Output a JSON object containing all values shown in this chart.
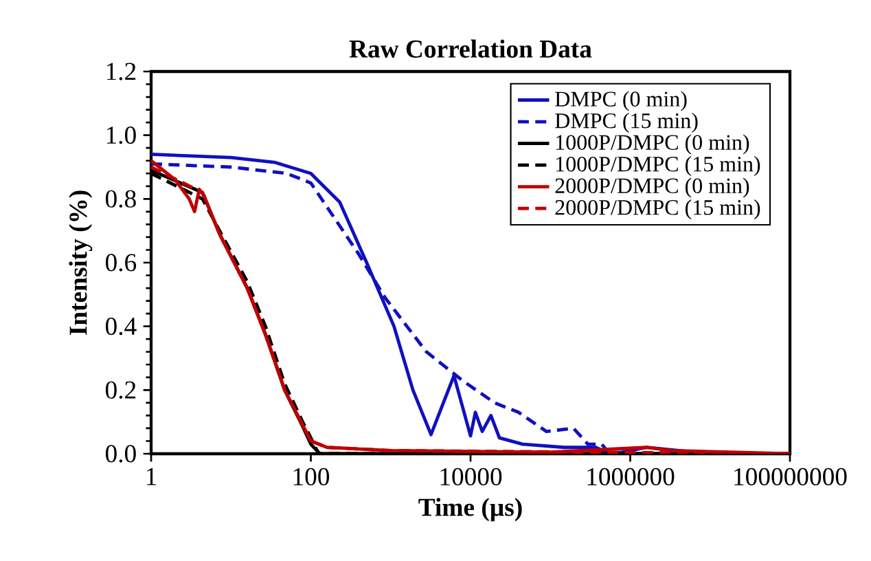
{
  "chart_data": {
    "type": "line",
    "title": "Raw Correlation Data",
    "xlabel": "Time (µs)",
    "ylabel": "Intensity  (%)",
    "log": "x",
    "xlim": [
      1,
      100000000
    ],
    "xticks": [
      1,
      100,
      10000,
      1000000,
      100000000
    ],
    "ylim": [
      0,
      1.2
    ],
    "yticks": [
      {
        "value": 0,
        "label": "0.0"
      },
      {
        "value": 0.2,
        "label": "0.2"
      },
      {
        "value": 0.4,
        "label": "0.4"
      },
      {
        "value": 0.6,
        "label": "0.6"
      },
      {
        "value": 0.8,
        "label": "0.8"
      },
      {
        "value": 1.0,
        "label": "1.0"
      },
      {
        "value": 1.2,
        "label": "1.2"
      }
    ],
    "legend": "top right",
    "marker": "none",
    "series": [
      {
        "name": "DMPC (0 min)",
        "color": "#1010c0",
        "line_style": "solid",
        "x": [
          1,
          10,
          35,
          100,
          230,
          500,
          1100,
          1900,
          3200,
          6200,
          10000,
          11500,
          14000,
          18000,
          23000,
          45000,
          150000,
          370000,
          550000,
          800000,
          1600000,
          3200000,
          10000000
        ],
        "values": [
          0.94,
          0.93,
          0.915,
          0.88,
          0.79,
          0.6,
          0.4,
          0.2,
          0.06,
          0.245,
          0.056,
          0.13,
          0.07,
          0.12,
          0.05,
          0.03,
          0.02,
          0.02,
          0.0,
          0.005,
          0.02,
          null,
          0.0
        ]
      },
      {
        "name": "DMPC (15 min)",
        "color": "#1010c0",
        "line_style": "dashed",
        "x": [
          1,
          10,
          50,
          100,
          390,
          850,
          2800,
          7900,
          20000,
          40000,
          89000,
          195000,
          295000,
          440000,
          550000,
          1000000,
          10000000
        ],
        "values": [
          0.91,
          0.9,
          0.88,
          0.85,
          0.63,
          0.49,
          0.32,
          0.23,
          0.16,
          0.13,
          0.07,
          0.08,
          0.03,
          0.03,
          0.0,
          0.0,
          0.0
        ]
      },
      {
        "name": "1000P/DMPC (0 min)",
        "color": "#000000",
        "line_style": "solid",
        "x": [
          1,
          4.4,
          7.2,
          16,
          27,
          47,
          79,
          100,
          130,
          1000,
          100000000
        ],
        "values": [
          0.89,
          0.82,
          0.69,
          0.52,
          0.375,
          0.2,
          0.086,
          0.03,
          0.0,
          0.0,
          0.0
        ]
      },
      {
        "name": "1000P/DMPC (15 min)",
        "color": "#000000",
        "line_style": "dashed",
        "x": [
          1,
          4.4,
          7.2,
          16,
          27,
          47,
          79,
          100,
          125,
          1000,
          100000000
        ],
        "values": [
          0.88,
          0.8,
          0.7,
          0.54,
          0.4,
          0.22,
          0.1,
          0.05,
          0.0,
          0.0,
          0.0
        ]
      },
      {
        "name": "2000P/DMPC (0 min)",
        "color": "#c00000",
        "line_style": "solid",
        "x": [
          1,
          2,
          3,
          3.5,
          4,
          4.6,
          7.2,
          10,
          16,
          27,
          47,
          79,
          100,
          160,
          1000,
          100000,
          1600000,
          3200000,
          100000000
        ],
        "values": [
          0.92,
          0.86,
          0.8,
          0.76,
          0.83,
          0.81,
          0.69,
          0.62,
          0.52,
          0.375,
          0.2,
          0.09,
          0.04,
          0.02,
          0.01,
          0.005,
          0.02,
          0.01,
          0.0
        ]
      },
      {
        "name": "2000P/DMPC (15 min)",
        "color": "#c00000",
        "line_style": "dashed",
        "x": [
          1,
          4.4,
          7.2,
          16,
          27,
          47,
          79,
          100,
          160,
          1000,
          100000000
        ],
        "values": [
          0.9,
          0.82,
          0.69,
          0.52,
          0.375,
          0.2,
          0.09,
          0.04,
          0.02,
          0.01,
          0.0
        ]
      }
    ]
  }
}
